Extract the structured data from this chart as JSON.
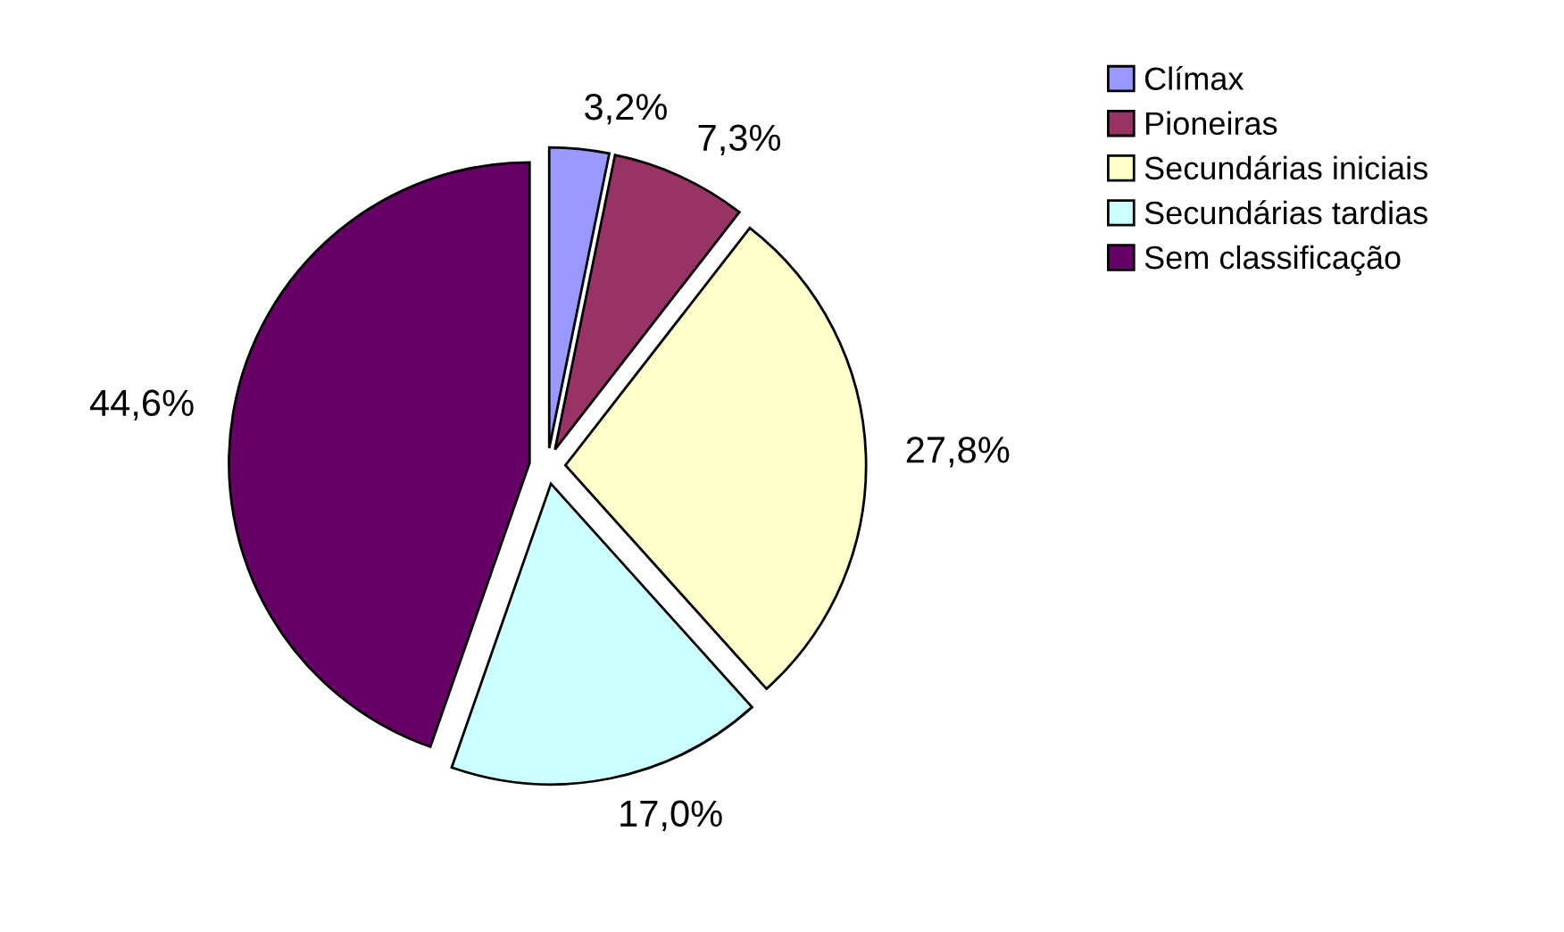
{
  "chart_data": {
    "type": "pie",
    "categories": [
      "Clímax",
      "Pioneiras",
      "Secundárias iniciais",
      "Secundárias tardias",
      "Sem classificação"
    ],
    "values": [
      3.2,
      7.3,
      27.8,
      17.0,
      44.6
    ],
    "colors": [
      "#9999ff",
      "#993366",
      "#ffffcc",
      "#ccffff",
      "#660066"
    ],
    "value_labels": [
      "3,2%",
      "7,3%",
      "27,8%",
      "17,0%",
      "44,6%"
    ],
    "legend": "right"
  }
}
